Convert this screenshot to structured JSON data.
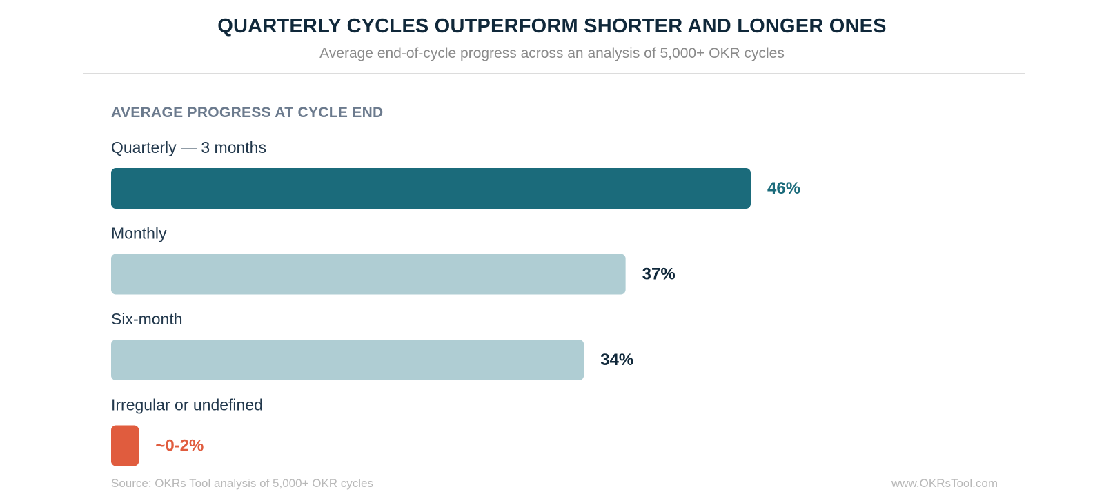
{
  "header": {
    "title": "QUARTERLY CYCLES OUTPERFORM SHORTER AND LONGER ONES",
    "subtitle": "Average end-of-cycle progress across an analysis of 5,000+ OKR cycles"
  },
  "chart_data": {
    "type": "bar",
    "orientation": "horizontal",
    "title": "AVERAGE PROGRESS AT CYCLE END",
    "categories": [
      "Quarterly — 3 months",
      "Monthly",
      "Six-month",
      "Irregular or undefined"
    ],
    "values": [
      46,
      37,
      34,
      2
    ],
    "value_labels": [
      "46%",
      "37%",
      "34%",
      "~0-2%"
    ],
    "bar_colors": [
      "#1b6b7b",
      "#afcdd3",
      "#afcdd3",
      "#e05c3e"
    ],
    "label_colors": [
      "#1b6b7b",
      "#10283a",
      "#10283a",
      "#e05c3e"
    ],
    "xlim": [
      0,
      46
    ],
    "grid": false,
    "legend": "none"
  },
  "footer": {
    "source": "Source: OKRs Tool analysis of 5,000+ OKR cycles",
    "url": "www.OKRsTool.com"
  }
}
